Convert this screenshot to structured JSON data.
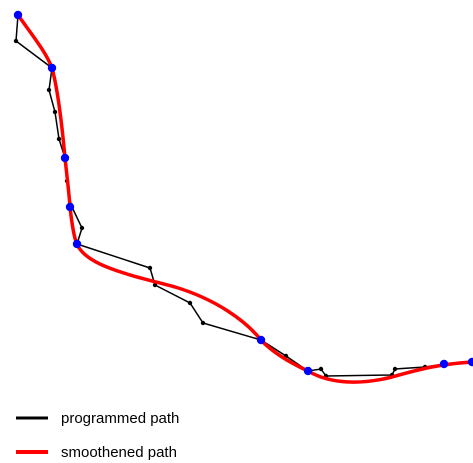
{
  "figure": {
    "colors": {
      "programmed": "#000000",
      "smoothened": "#ff0000",
      "waypoint": "#0000ff"
    },
    "legend": {
      "programmed_label": "programmed path",
      "smoothened_label": "smoothened path"
    },
    "programmed_points": 41,
    "waypoints": 12
  }
}
